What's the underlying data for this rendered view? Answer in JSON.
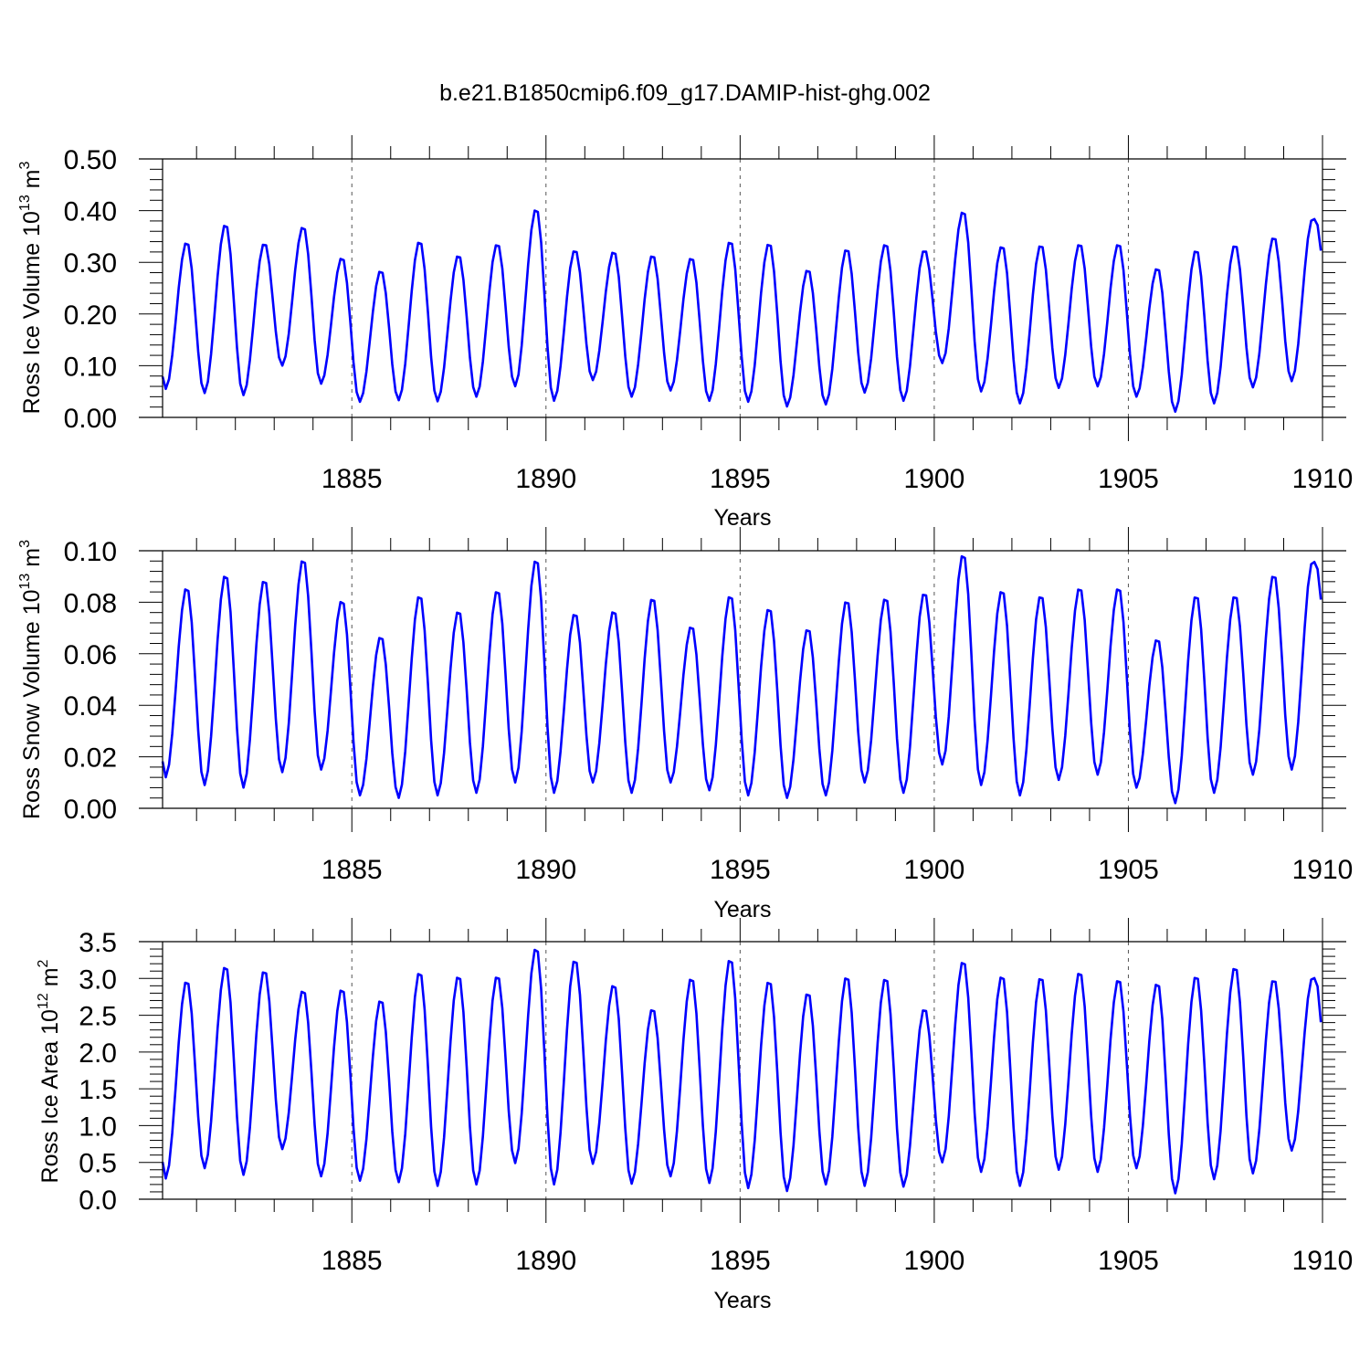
{
  "figure_title": "b.e21.B1850cmip6.f09_g17.DAMIP-hist-ghg.002",
  "colors": {
    "series": "#0000ff",
    "axes": "#000000",
    "gridline": "#555555"
  },
  "chart_data": [
    {
      "type": "line",
      "title": "b.e21.B1850cmip6.f09_g17.DAMIP-hist-ghg.002",
      "xlabel": "Years",
      "ylabel_main": "Ross Ice Volume 10",
      "ylabel_exp": "13",
      "ylabel_unit": " m",
      "ylabel_unit_exp": "3",
      "xlim": [
        1880.125,
        1910.0
      ],
      "ylim": [
        0.0,
        0.5
      ],
      "xticks": [
        1885,
        1890,
        1895,
        1900,
        1905,
        1910
      ],
      "xtick_labels": [
        "1885",
        "1890",
        "1895",
        "1900",
        "1905",
        "1910"
      ],
      "yticks": [
        0.0,
        0.1,
        0.2,
        0.3,
        0.4,
        0.5
      ],
      "ytick_labels": [
        "0.00",
        "0.10",
        "0.20",
        "0.30",
        "0.40",
        "0.50"
      ],
      "start_year": 1880.125,
      "step": 0.08333,
      "minima": [
        0.055,
        0.047,
        0.043,
        0.1,
        0.065,
        0.03,
        0.033,
        0.031,
        0.04,
        0.06,
        0.032,
        0.072,
        0.04,
        0.052,
        0.032,
        0.03,
        0.021,
        0.025,
        0.048,
        0.032,
        0.105,
        0.05,
        0.027,
        0.057,
        0.06,
        0.04,
        0.011,
        0.027,
        0.058,
        0.07
      ],
      "maxima": [
        0.34,
        0.375,
        0.338,
        0.37,
        0.31,
        0.285,
        0.342,
        0.315,
        0.337,
        0.405,
        0.325,
        0.322,
        0.315,
        0.31,
        0.342,
        0.338,
        0.287,
        0.327,
        0.337,
        0.325,
        0.4,
        0.333,
        0.335,
        0.337,
        0.337,
        0.29,
        0.325,
        0.335,
        0.35,
        0.385
      ],
      "y_end": 0.31
    },
    {
      "type": "line",
      "xlabel": "Years",
      "ylabel_main": "Ross Snow Volume 10",
      "ylabel_exp": "13",
      "ylabel_unit": " m",
      "ylabel_unit_exp": "3",
      "xlim": [
        1880.125,
        1910.0
      ],
      "ylim": [
        0.0,
        0.1
      ],
      "xticks": [
        1885,
        1890,
        1895,
        1900,
        1905,
        1910
      ],
      "xtick_labels": [
        "1885",
        "1890",
        "1895",
        "1900",
        "1905",
        "1910"
      ],
      "yticks": [
        0.0,
        0.02,
        0.04,
        0.06,
        0.08,
        0.1
      ],
      "ytick_labels": [
        "0.00",
        "0.02",
        "0.04",
        "0.06",
        "0.08",
        "0.10"
      ],
      "start_year": 1880.125,
      "step": 0.08333,
      "minima": [
        0.012,
        0.009,
        0.008,
        0.014,
        0.015,
        0.005,
        0.004,
        0.005,
        0.006,
        0.01,
        0.006,
        0.01,
        0.006,
        0.01,
        0.007,
        0.005,
        0.004,
        0.005,
        0.01,
        0.006,
        0.017,
        0.009,
        0.005,
        0.011,
        0.013,
        0.008,
        0.002,
        0.006,
        0.013,
        0.015
      ],
      "maxima": [
        0.086,
        0.091,
        0.089,
        0.097,
        0.081,
        0.067,
        0.083,
        0.077,
        0.085,
        0.097,
        0.076,
        0.077,
        0.082,
        0.071,
        0.083,
        0.078,
        0.07,
        0.081,
        0.082,
        0.084,
        0.099,
        0.085,
        0.083,
        0.086,
        0.086,
        0.066,
        0.083,
        0.083,
        0.091,
        0.096
      ],
      "y_end": 0.078
    },
    {
      "type": "line",
      "xlabel": "Years",
      "ylabel_main": "Ross Ice Area 10",
      "ylabel_exp": "12",
      "ylabel_unit": " m",
      "ylabel_unit_exp": "2",
      "xlim": [
        1880.125,
        1910.0
      ],
      "ylim": [
        0.0,
        3.5
      ],
      "xticks": [
        1885,
        1890,
        1895,
        1900,
        1905,
        1910
      ],
      "xtick_labels": [
        "1885",
        "1890",
        "1895",
        "1900",
        "1905",
        "1910"
      ],
      "yticks": [
        0.0,
        0.5,
        1.0,
        1.5,
        2.0,
        2.5,
        3.0,
        3.5
      ],
      "ytick_labels": [
        "0.0",
        "0.5",
        "1.0",
        "1.5",
        "2.0",
        "2.5",
        "3.0",
        "3.5"
      ],
      "start_year": 1880.125,
      "step": 0.08333,
      "minima": [
        0.28,
        0.42,
        0.33,
        0.68,
        0.31,
        0.25,
        0.23,
        0.18,
        0.2,
        0.49,
        0.2,
        0.48,
        0.21,
        0.31,
        0.22,
        0.15,
        0.11,
        0.2,
        0.18,
        0.17,
        0.5,
        0.37,
        0.18,
        0.4,
        0.37,
        0.42,
        0.08,
        0.27,
        0.35,
        0.66
      ],
      "maxima": [
        2.98,
        3.18,
        3.12,
        2.85,
        2.87,
        2.72,
        3.1,
        3.05,
        3.05,
        3.43,
        3.27,
        2.93,
        2.6,
        3.02,
        3.28,
        2.98,
        2.82,
        3.04,
        3.02,
        2.6,
        3.25,
        3.05,
        3.03,
        3.1,
        3.0,
        2.95,
        3.05,
        3.17,
        3.0,
        3.02
      ],
      "y_end": 2.28
    }
  ]
}
